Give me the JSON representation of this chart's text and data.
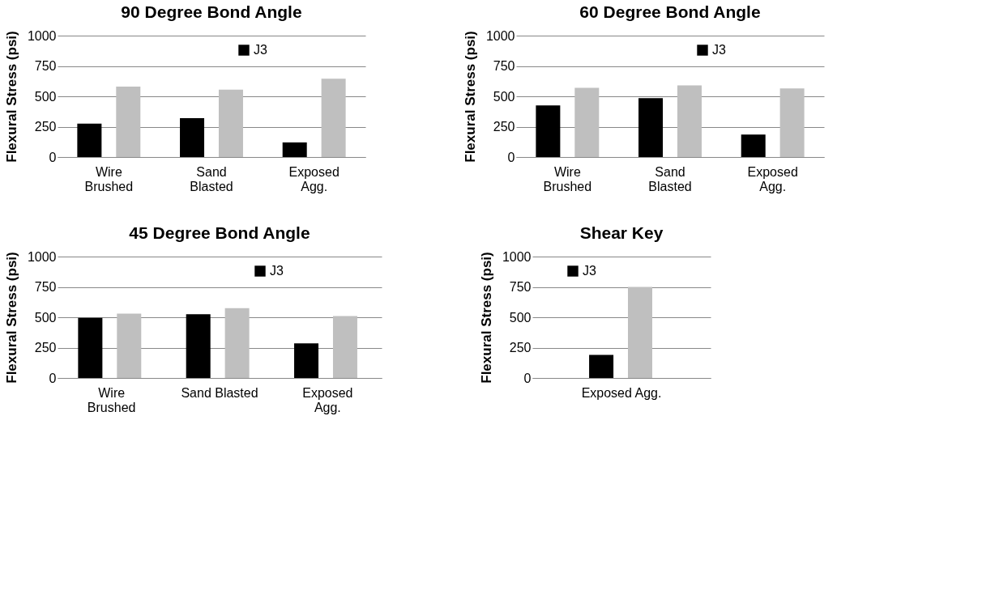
{
  "chart_data": [
    {
      "type": "bar",
      "title": "90 Degree Bond Angle",
      "ylabel": "Flexural Stress (psi)",
      "categories": [
        "Wire\nBrushed",
        "Sand\nBlasted",
        "Exposed\nAgg."
      ],
      "ylim": [
        0,
        1000
      ],
      "yticks": [
        0,
        250,
        500,
        750,
        1000
      ],
      "grid": "y",
      "legend": "top right",
      "series": [
        {
          "name": "J3",
          "color": "#000000",
          "values": [
            275,
            320,
            120
          ]
        },
        {
          "name": null,
          "color": "#bfbfbf",
          "values": [
            580,
            555,
            645
          ]
        }
      ]
    },
    {
      "type": "bar",
      "title": "60 Degree Bond Angle",
      "ylabel": "Flexural Stress (psi)",
      "categories": [
        "Wire\nBrushed",
        "Sand\nBlasted",
        "Exposed\nAgg."
      ],
      "ylim": [
        0,
        1000
      ],
      "yticks": [
        0,
        250,
        500,
        750,
        1000
      ],
      "grid": "y",
      "legend": "top right",
      "series": [
        {
          "name": "J3",
          "color": "#000000",
          "values": [
            425,
            485,
            185
          ]
        },
        {
          "name": null,
          "color": "#bfbfbf",
          "values": [
            570,
            590,
            565
          ]
        }
      ]
    },
    {
      "type": "bar",
      "title": "45 Degree Bond Angle",
      "ylabel": "Flexural Stress (psi)",
      "categories": [
        "Wire\nBrushed",
        "Sand Blasted",
        "Exposed\nAgg."
      ],
      "ylim": [
        0,
        1000
      ],
      "yticks": [
        0,
        250,
        500,
        750,
        1000
      ],
      "grid": "y",
      "legend": "top right",
      "series": [
        {
          "name": "J3",
          "color": "#000000",
          "values": [
            495,
            525,
            285
          ]
        },
        {
          "name": null,
          "color": "#bfbfbf",
          "values": [
            530,
            575,
            510
          ]
        }
      ]
    },
    {
      "type": "bar",
      "title": "Shear Key",
      "ylabel": "Flexural Stress (psi)",
      "categories": [
        "Exposed Agg."
      ],
      "ylim": [
        0,
        1000
      ],
      "yticks": [
        0,
        250,
        500,
        750,
        1000
      ],
      "grid": "y",
      "legend": "top",
      "series": [
        {
          "name": "J3",
          "color": "#000000",
          "values": [
            190
          ]
        },
        {
          "name": null,
          "color": "#bfbfbf",
          "values": [
            750
          ]
        }
      ]
    }
  ]
}
